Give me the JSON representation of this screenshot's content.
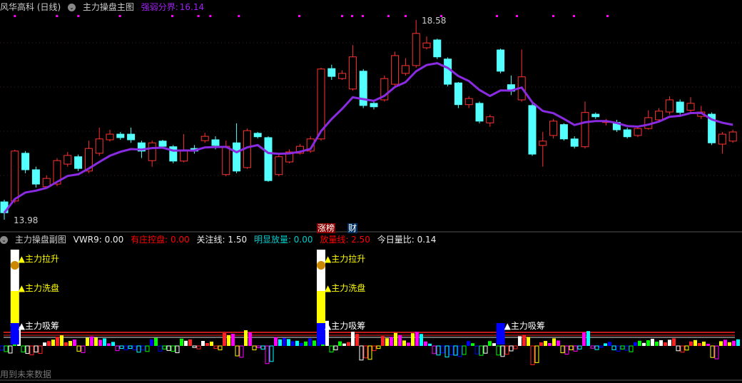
{
  "main": {
    "title": "风华高科 (日线)",
    "indicator": "主力操盘主图",
    "strength_label": "强弱分界:",
    "strength_value": "16.14",
    "high_label": "18.58",
    "low_label": "13.98",
    "tag_zhangbang": "涨榜",
    "tag_cai": "财"
  },
  "sub": {
    "indicator": "主力操盘副图",
    "vwr9": "VWR9: 0.00",
    "control": "有庄控盘: 0.00",
    "focus": "关注线: 1.50",
    "vol_obvious": "明显放量: 0.00",
    "vol_line": "放量线: 2.50",
    "today_ratio": "今日量比: 0.14",
    "signal_raise": "主力拉升",
    "signal_wash": "主力洗盘",
    "signal_absorb": "主力吸筹"
  },
  "footer": "用到未来数据",
  "colors": {
    "up": "#ff3232",
    "down": "#54ffff",
    "ma": "#8a2be2",
    "bg": "#000000"
  },
  "price_range": [
    13.98,
    18.58
  ],
  "candles": [
    [
      14.39,
      14.14,
      14.44,
      13.98
    ],
    [
      14.41,
      15.56,
      15.59,
      14.36
    ],
    [
      15.51,
      15.13,
      15.56,
      15.05
    ],
    [
      15.13,
      14.8,
      15.2,
      14.72
    ],
    [
      14.74,
      14.93,
      15.0,
      14.7
    ],
    [
      14.8,
      15.34,
      15.4,
      14.75
    ],
    [
      15.26,
      15.46,
      15.54,
      15.2
    ],
    [
      15.43,
      15.16,
      15.48,
      15.1
    ],
    [
      15.1,
      15.62,
      15.8,
      15.05
    ],
    [
      15.51,
      15.84,
      16.1,
      15.45
    ],
    [
      15.82,
      15.95,
      16.05,
      15.78
    ],
    [
      15.95,
      15.87,
      16.0,
      15.82
    ],
    [
      15.95,
      15.82,
      16.1,
      15.75
    ],
    [
      15.75,
      15.56,
      15.8,
      15.4
    ],
    [
      15.34,
      15.75,
      15.8,
      15.2
    ],
    [
      15.79,
      15.67,
      15.82,
      15.62
    ],
    [
      15.66,
      15.33,
      15.7,
      15.28
    ],
    [
      15.33,
      15.59,
      15.95,
      15.3
    ],
    [
      15.62,
      15.56,
      15.7,
      15.5
    ],
    [
      15.8,
      15.9,
      15.98,
      15.75
    ],
    [
      15.82,
      15.69,
      15.9,
      15.6
    ],
    [
      15.02,
      15.67,
      15.8,
      14.98
    ],
    [
      15.75,
      15.1,
      16.2,
      15.05
    ],
    [
      15.18,
      16.03,
      16.08,
      15.15
    ],
    [
      15.97,
      15.89,
      16.0,
      15.85
    ],
    [
      15.87,
      14.88,
      15.9,
      14.85
    ],
    [
      15.02,
      15.43,
      15.5,
      14.98
    ],
    [
      15.31,
      15.54,
      15.6,
      15.28
    ],
    [
      15.51,
      15.67,
      15.72,
      15.48
    ],
    [
      15.56,
      15.84,
      15.9,
      15.52
    ],
    [
      15.84,
      17.45,
      17.48,
      15.8
    ],
    [
      17.46,
      17.28,
      17.55,
      17.2
    ],
    [
      17.23,
      17.35,
      17.42,
      17.2
    ],
    [
      16.99,
      17.73,
      18.0,
      16.95
    ],
    [
      17.4,
      16.61,
      17.45,
      16.55
    ],
    [
      16.66,
      16.58,
      16.7,
      16.52
    ],
    [
      16.74,
      17.23,
      17.3,
      16.7
    ],
    [
      17.1,
      17.76,
      17.85,
      17.05
    ],
    [
      17.35,
      17.53,
      17.7,
      17.3
    ],
    [
      17.53,
      18.27,
      18.58,
      17.48
    ],
    [
      17.94,
      18.05,
      18.2,
      17.9
    ],
    [
      18.12,
      17.73,
      18.15,
      17.68
    ],
    [
      17.68,
      17.1,
      17.72,
      17.05
    ],
    [
      17.13,
      16.63,
      17.15,
      16.55
    ],
    [
      16.63,
      16.77,
      16.82,
      16.55
    ],
    [
      16.66,
      16.25,
      16.7,
      16.2
    ],
    [
      16.21,
      16.35,
      16.4,
      16.12
    ],
    [
      17.89,
      17.4,
      17.92,
      17.35
    ],
    [
      17.09,
      16.94,
      17.3,
      16.85
    ],
    [
      16.74,
      17.27,
      17.9,
      16.7
    ],
    [
      16.61,
      15.49,
      16.65,
      15.45
    ],
    [
      15.69,
      15.79,
      16.0,
      15.2
    ],
    [
      15.92,
      16.25,
      16.3,
      15.85
    ],
    [
      16.17,
      15.84,
      16.2,
      15.8
    ],
    [
      15.84,
      15.67,
      15.9,
      15.62
    ],
    [
      15.66,
      16.45,
      16.7,
      15.62
    ],
    [
      16.41,
      16.35,
      16.45,
      16.3
    ],
    [
      16.22,
      16.25,
      16.3,
      16.15
    ],
    [
      16.22,
      16.05,
      16.28,
      16.0
    ],
    [
      16.05,
      15.89,
      16.1,
      15.85
    ],
    [
      15.92,
      16.08,
      16.12,
      15.88
    ],
    [
      16.08,
      16.33,
      16.5,
      16.05
    ],
    [
      16.28,
      16.48,
      16.55,
      16.25
    ],
    [
      16.46,
      16.74,
      16.82,
      16.4
    ],
    [
      16.69,
      16.45,
      16.75,
      16.4
    ],
    [
      16.5,
      16.66,
      16.8,
      16.45
    ],
    [
      16.36,
      16.46,
      16.6,
      16.3
    ],
    [
      16.41,
      15.75,
      16.45,
      15.7
    ],
    [
      15.72,
      15.95,
      16.0,
      15.5
    ],
    [
      15.79,
      16.0,
      16.05,
      15.75
    ]
  ],
  "signal_candles": [
    1,
    30,
    47
  ]
}
